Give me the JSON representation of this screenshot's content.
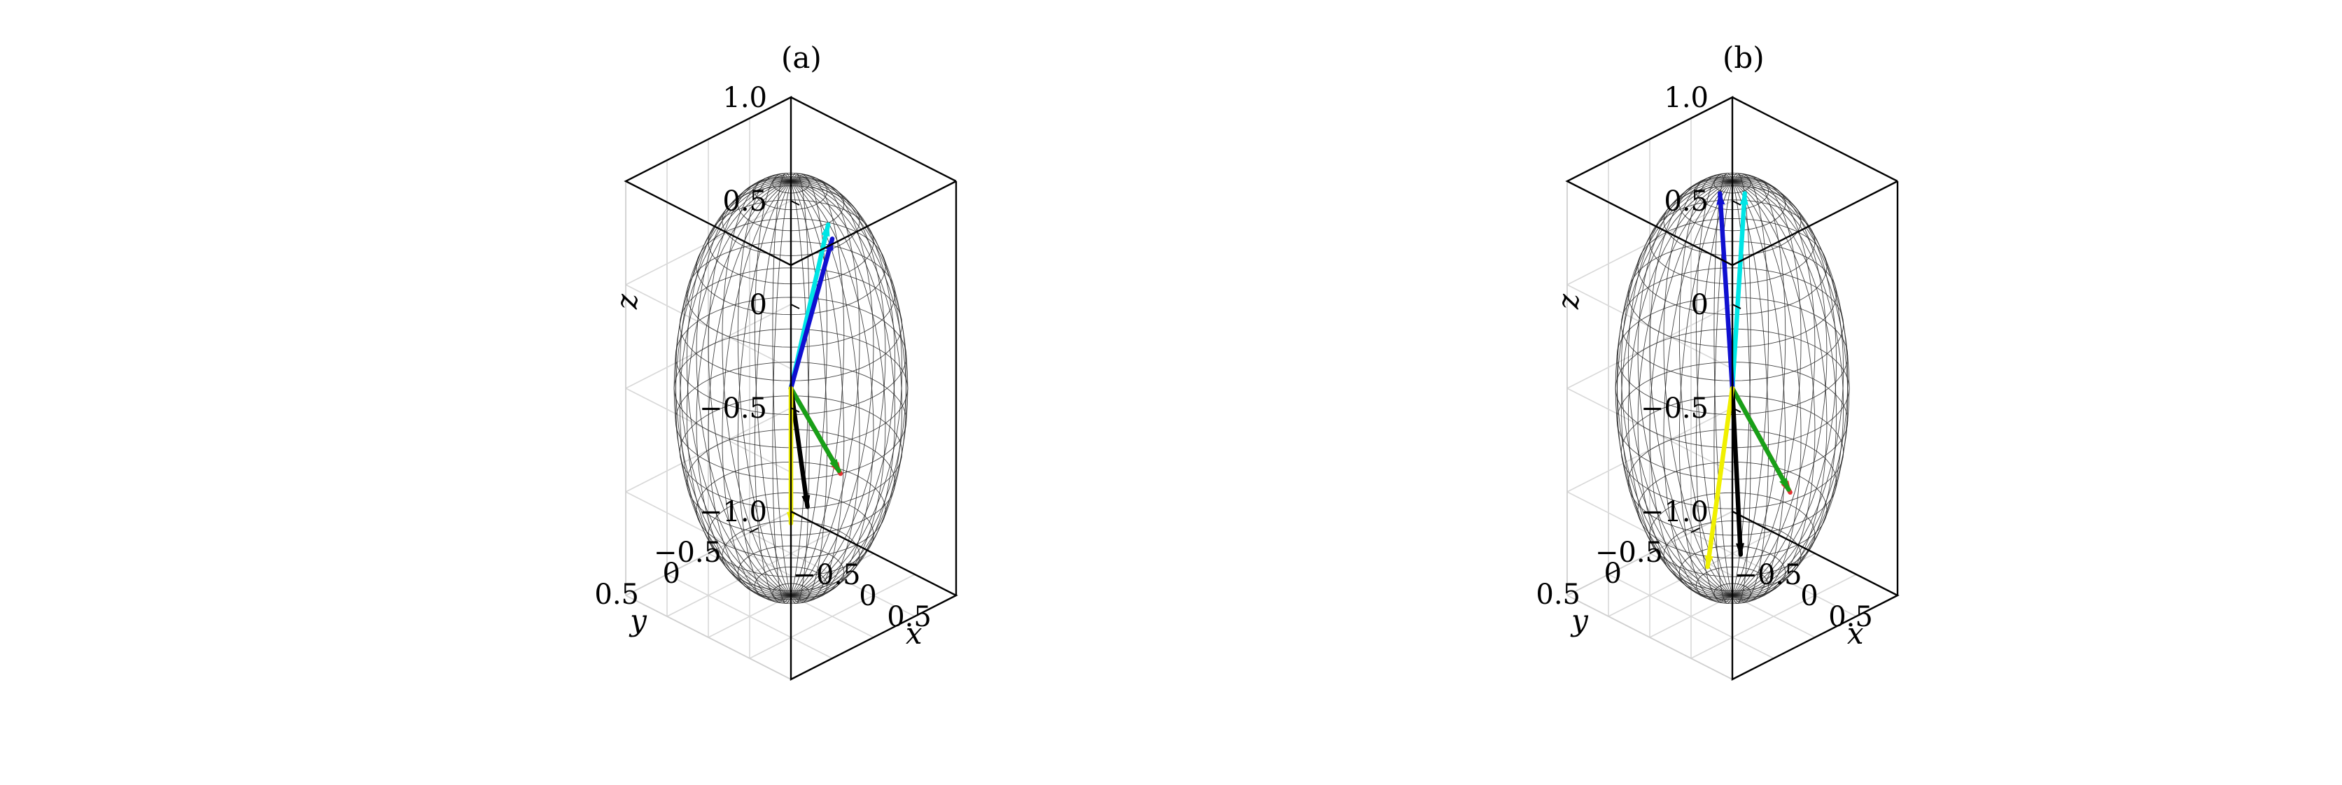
{
  "chart_data": [
    {
      "type": "3d-vector",
      "panel_label": "(a)",
      "xlabel": "x",
      "ylabel": "y",
      "zlabel": "z",
      "xticks": [
        "−0.5",
        "0",
        "0.5"
      ],
      "yticks": [
        "−0.5",
        "0",
        "0.5"
      ],
      "zticks": [
        "−1.0",
        "−0.5",
        "0",
        "0.5",
        "1.0"
      ],
      "xlim": [
        -1,
        1
      ],
      "ylim": [
        -1,
        1
      ],
      "zlim": [
        -1,
        1
      ],
      "grid": true,
      "sphere": "unit wireframe",
      "vectors": [
        {
          "color": "#00e5e5",
          "end": [
            0.2,
            -0.25,
            0.78
          ]
        },
        {
          "color": "#1010d0",
          "end": [
            0.32,
            -0.18,
            0.75
          ]
        },
        {
          "color": "#e03030",
          "end": [
            0.7,
            0.1,
            -0.25
          ]
        },
        {
          "color": "#18a018",
          "end": [
            0.68,
            0.1,
            -0.24
          ]
        },
        {
          "color": "#000000",
          "end": [
            0.4,
            0.2,
            -0.45
          ]
        },
        {
          "color": "#f0f000",
          "end": [
            0.25,
            0.25,
            -0.55
          ]
        }
      ]
    },
    {
      "type": "3d-vector",
      "panel_label": "(b)",
      "xlabel": "x",
      "ylabel": "y",
      "zlabel": "z",
      "xticks": [
        "−0.5",
        "0",
        "0.5"
      ],
      "yticks": [
        "−0.5",
        "0",
        "0.5"
      ],
      "zticks": [
        "−1.0",
        "−0.5",
        "0",
        "0.5",
        "1.0"
      ],
      "xlim": [
        -1,
        1
      ],
      "ylim": [
        -1,
        1
      ],
      "zlim": [
        -1,
        1
      ],
      "grid": true,
      "sphere": "unit wireframe",
      "vectors": [
        {
          "color": "#00e5e5",
          "end": [
            -0.15,
            -0.3,
            0.85
          ]
        },
        {
          "color": "#1010d0",
          "end": [
            -0.3,
            -0.15,
            0.85
          ]
        },
        {
          "color": "#e03030",
          "end": [
            0.8,
            0.1,
            -0.32
          ]
        },
        {
          "color": "#18a018",
          "end": [
            0.78,
            0.1,
            -0.31
          ]
        },
        {
          "color": "#000000",
          "end": [
            0.5,
            0.4,
            -0.62
          ]
        },
        {
          "color": "#f0f000",
          "end": [
            0.25,
            0.55,
            -0.7
          ]
        }
      ]
    }
  ]
}
